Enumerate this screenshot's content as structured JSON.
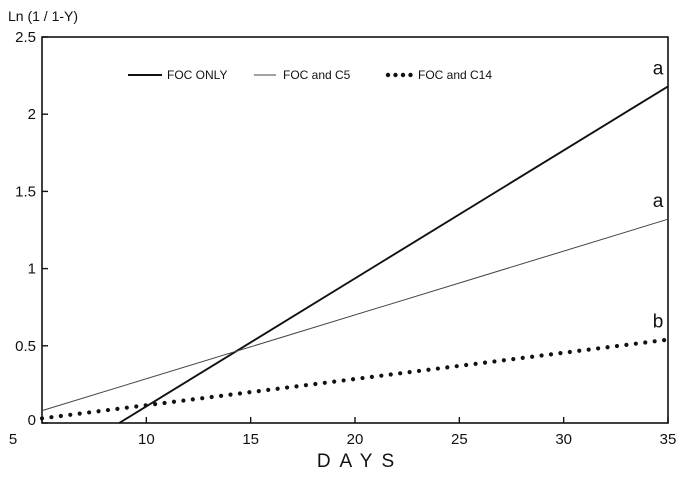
{
  "chart_data": {
    "type": "line",
    "title": "",
    "xlabel": "DAYS",
    "ylabel": "Ln (1 / 1-Y)",
    "xlim": [
      5,
      35
    ],
    "ylim": [
      0,
      2.5
    ],
    "xticks": [
      5,
      10,
      15,
      20,
      25,
      30,
      35
    ],
    "yticks": [
      0,
      0.5,
      1,
      1.5,
      2,
      2.5
    ],
    "xtick_labels": [
      "5",
      "10",
      "15",
      "20",
      "25",
      "30",
      "35"
    ],
    "ytick_labels": [
      "0",
      "0.5",
      "1",
      "1.5",
      "2",
      "2.5"
    ],
    "grid": false,
    "legend_position": "top",
    "series": [
      {
        "name": "FOC ONLY",
        "style": "solid-thick",
        "color": "#111111",
        "x": [
          8.7,
          35
        ],
        "y": [
          0,
          2.18
        ],
        "significance": "a"
      },
      {
        "name": "FOC and C5",
        "style": "solid-thin",
        "color": "#333333",
        "x": [
          5,
          35
        ],
        "y": [
          0.08,
          1.32
        ],
        "significance": "a"
      },
      {
        "name": "FOC and C14",
        "style": "dotted",
        "color": "#111111",
        "x": [
          5,
          35
        ],
        "y": [
          0.03,
          0.54
        ],
        "significance": "b"
      }
    ]
  }
}
